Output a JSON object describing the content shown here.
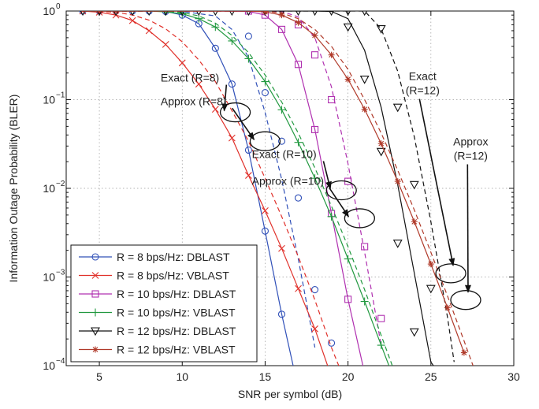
{
  "chart_data": {
    "type": "line",
    "xlabel": "SNR per symbol (dB)",
    "ylabel": "Information Outage Probability  (BLER)",
    "xlim": [
      3,
      30
    ],
    "ylim": [
      0.0001,
      1
    ],
    "y_scale": "log",
    "grid": "dotted",
    "legend_position": "bottom-left",
    "x_ticks": [
      5,
      10,
      15,
      20,
      25,
      30
    ],
    "y_ticks": [
      {
        "value": 1,
        "mantissa": "10",
        "exp": "0"
      },
      {
        "value": 0.1,
        "mantissa": "10",
        "exp": "−1"
      },
      {
        "value": 0.01,
        "mantissa": "10",
        "exp": "−2"
      },
      {
        "value": 0.001,
        "mantissa": "10",
        "exp": "−3"
      },
      {
        "value": 0.0001,
        "mantissa": "10",
        "exp": "−4"
      }
    ],
    "series": [
      {
        "name": "R = 8 bps/Hz: DBLAST",
        "color": "#3050b8",
        "marker": "circle",
        "solid": [
          [
            4,
            1
          ],
          [
            6,
            1
          ],
          [
            7,
            1
          ],
          [
            8,
            1
          ],
          [
            9,
            0.99
          ],
          [
            10,
            0.9
          ],
          [
            11,
            0.72
          ],
          [
            12,
            0.38
          ],
          [
            13,
            0.15
          ],
          [
            14,
            0.027
          ],
          [
            15,
            0.0033
          ],
          [
            16,
            0.00038
          ],
          [
            17,
            5.5e-05
          ]
        ],
        "dashed": [
          [
            4,
            1
          ],
          [
            8,
            1
          ],
          [
            10,
            0.99
          ],
          [
            12,
            0.88
          ],
          [
            13,
            0.62
          ],
          [
            14,
            0.3
          ],
          [
            15,
            0.072
          ],
          [
            16,
            0.0126
          ],
          [
            17,
            0.0016
          ],
          [
            18,
            0.00016
          ]
        ],
        "solid_markers": [
          [
            4,
            1
          ],
          [
            5,
            1
          ],
          [
            6,
            1
          ],
          [
            7,
            1
          ],
          [
            8,
            1
          ],
          [
            9,
            0.99
          ],
          [
            10,
            0.9
          ],
          [
            11,
            0.72
          ],
          [
            12,
            0.38
          ],
          [
            13,
            0.15
          ],
          [
            14,
            0.027
          ],
          [
            15,
            0.0033
          ],
          [
            16,
            0.00038
          ],
          [
            17,
            5.5e-05
          ]
        ],
        "dashed_markers": [
          [
            14,
            0.52
          ],
          [
            15,
            0.12
          ],
          [
            16,
            0.034
          ],
          [
            17,
            0.0078
          ],
          [
            18,
            0.00072
          ],
          [
            19,
            0.00018
          ]
        ]
      },
      {
        "name": "R = 8 bps/Hz: VBLAST",
        "color": "#e0302a",
        "marker": "x",
        "solid": [
          [
            4,
            1
          ],
          [
            5,
            0.97
          ],
          [
            6,
            0.9
          ],
          [
            7,
            0.78
          ],
          [
            8,
            0.6
          ],
          [
            9,
            0.42
          ],
          [
            10,
            0.26
          ],
          [
            11,
            0.15
          ],
          [
            12,
            0.078
          ],
          [
            13,
            0.037
          ],
          [
            14,
            0.014
          ],
          [
            15,
            0.0056
          ],
          [
            16,
            0.0021
          ],
          [
            17,
            0.00074
          ],
          [
            18,
            0.00026
          ],
          [
            19,
            7.5e-05
          ]
        ],
        "dashed": [
          [
            4,
            1
          ],
          [
            6,
            0.97
          ],
          [
            7,
            0.9
          ],
          [
            8,
            0.79
          ],
          [
            9,
            0.63
          ],
          [
            10,
            0.45
          ],
          [
            11,
            0.28
          ],
          [
            12,
            0.16
          ],
          [
            13,
            0.075
          ],
          [
            14,
            0.034
          ],
          [
            15,
            0.013
          ],
          [
            16,
            0.0048
          ],
          [
            17,
            0.0017
          ],
          [
            18,
            0.00055
          ],
          [
            19,
            0.00016
          ],
          [
            20,
            5.5e-05
          ]
        ],
        "solid_markers": [
          [
            4,
            1
          ],
          [
            5,
            0.97
          ],
          [
            6,
            0.9
          ],
          [
            7,
            0.78
          ],
          [
            8,
            0.6
          ],
          [
            9,
            0.42
          ],
          [
            10,
            0.26
          ],
          [
            11,
            0.15
          ],
          [
            12,
            0.078
          ],
          [
            13,
            0.037
          ],
          [
            14,
            0.014
          ],
          [
            15,
            0.0056
          ],
          [
            16,
            0.0021
          ],
          [
            17,
            0.00074
          ],
          [
            18,
            0.00026
          ],
          [
            19,
            7.5e-05
          ]
        ],
        "dashed_markers": []
      },
      {
        "name": "R = 10 bps/Hz: DBLAST",
        "color": "#b030b0",
        "marker": "square",
        "solid": [
          [
            4,
            1
          ],
          [
            10,
            1
          ],
          [
            12,
            1
          ],
          [
            14,
            0.99
          ],
          [
            15,
            0.9
          ],
          [
            16,
            0.62
          ],
          [
            17,
            0.25
          ],
          [
            18,
            0.046
          ],
          [
            19,
            0.0052
          ],
          [
            20,
            0.00056
          ],
          [
            21,
            8.2e-05
          ]
        ],
        "dashed": [
          [
            4,
            1
          ],
          [
            14,
            1
          ],
          [
            16,
            0.99
          ],
          [
            17,
            0.86
          ],
          [
            18,
            0.5
          ],
          [
            19,
            0.14
          ],
          [
            20,
            0.019
          ],
          [
            21,
            0.0019
          ],
          [
            22,
            0.00017
          ]
        ],
        "solid_markers": [
          [
            14,
            1
          ],
          [
            15,
            0.9
          ],
          [
            16,
            0.62
          ],
          [
            17,
            0.25
          ],
          [
            18,
            0.046
          ],
          [
            19,
            0.0052
          ],
          [
            20,
            0.00056
          ],
          [
            21,
            8.2e-05
          ]
        ],
        "dashed_markers": [
          [
            17,
            0.7
          ],
          [
            18,
            0.32
          ],
          [
            19,
            0.1
          ],
          [
            20,
            0.012
          ],
          [
            21,
            0.0022
          ],
          [
            22,
            0.00034
          ]
        ]
      },
      {
        "name": "R = 10 bps/Hz: VBLAST",
        "color": "#229940",
        "marker": "plus",
        "solid": [
          [
            4,
            1
          ],
          [
            8,
            1
          ],
          [
            9,
            0.98
          ],
          [
            10,
            0.93
          ],
          [
            11,
            0.82
          ],
          [
            12,
            0.66
          ],
          [
            13,
            0.46
          ],
          [
            14,
            0.29
          ],
          [
            15,
            0.16
          ],
          [
            16,
            0.077
          ],
          [
            17,
            0.033
          ],
          [
            18,
            0.013
          ],
          [
            19,
            0.0048
          ],
          [
            20,
            0.0016
          ],
          [
            21,
            0.00053
          ],
          [
            22,
            0.00017
          ],
          [
            23,
            5.5e-05
          ]
        ],
        "dashed": [
          [
            4,
            1
          ],
          [
            9,
            1
          ],
          [
            10,
            0.96
          ],
          [
            11,
            0.88
          ],
          [
            12,
            0.73
          ],
          [
            13,
            0.53
          ],
          [
            14,
            0.34
          ],
          [
            15,
            0.19
          ],
          [
            16,
            0.094
          ],
          [
            17,
            0.042
          ],
          [
            18,
            0.017
          ],
          [
            19,
            0.0063
          ],
          [
            20,
            0.0022
          ],
          [
            21,
            0.00072
          ],
          [
            22,
            0.00022
          ],
          [
            23,
            6.8e-05
          ]
        ],
        "solid_markers": [
          [
            9,
            0.98
          ],
          [
            10,
            0.93
          ],
          [
            11,
            0.82
          ],
          [
            12,
            0.66
          ],
          [
            13,
            0.46
          ],
          [
            14,
            0.29
          ],
          [
            15,
            0.16
          ],
          [
            16,
            0.077
          ],
          [
            17,
            0.033
          ],
          [
            18,
            0.013
          ],
          [
            19,
            0.0048
          ],
          [
            20,
            0.0016
          ],
          [
            21,
            0.00053
          ],
          [
            22,
            0.00017
          ],
          [
            23,
            5.5e-05
          ]
        ],
        "dashed_markers": []
      },
      {
        "name": "R = 12 bps/Hz: DBLAST",
        "color": "#111111",
        "marker": "triangle-down",
        "solid": [
          [
            4,
            1
          ],
          [
            18,
            1
          ],
          [
            19,
            0.99
          ],
          [
            20,
            0.82
          ],
          [
            21,
            0.36
          ],
          [
            22,
            0.082
          ],
          [
            23,
            0.011
          ],
          [
            24,
            0.0011
          ],
          [
            25,
            0.00011
          ],
          [
            26,
            5.8e-05
          ]
        ],
        "dashed": [
          [
            4,
            1
          ],
          [
            20,
            1
          ],
          [
            21,
            1
          ],
          [
            22,
            0.63
          ],
          [
            23,
            0.21
          ],
          [
            24,
            0.038
          ],
          [
            25,
            0.0042
          ],
          [
            26,
            0.00035
          ],
          [
            26.4,
            0.00011
          ]
        ],
        "solid_markers": [
          [
            4,
            1
          ],
          [
            5,
            1
          ],
          [
            6,
            1
          ],
          [
            7,
            1
          ],
          [
            8,
            1
          ],
          [
            9,
            1
          ],
          [
            10,
            1
          ],
          [
            11,
            1
          ],
          [
            12,
            1
          ],
          [
            13,
            1
          ],
          [
            14,
            1
          ],
          [
            15,
            1
          ],
          [
            16,
            1
          ],
          [
            17,
            1
          ],
          [
            18,
            1
          ],
          [
            19,
            1
          ],
          [
            20,
            0.66
          ],
          [
            21,
            0.17
          ],
          [
            22,
            0.026
          ],
          [
            23,
            0.0024
          ],
          [
            24,
            0.00024
          ]
        ],
        "dashed_markers": [
          [
            20,
            1
          ],
          [
            21,
            1
          ],
          [
            22,
            0.63
          ],
          [
            23,
            0.082
          ],
          [
            24,
            0.011
          ],
          [
            25,
            0.00074
          ]
        ]
      },
      {
        "name": "R = 12 bps/Hz: VBLAST",
        "color": "#b03a2a",
        "marker": "asterisk",
        "solid": [
          [
            4,
            1
          ],
          [
            14,
            1
          ],
          [
            15,
            0.98
          ],
          [
            16,
            0.9
          ],
          [
            17,
            0.74
          ],
          [
            18,
            0.53
          ],
          [
            19,
            0.32
          ],
          [
            20,
            0.17
          ],
          [
            21,
            0.078
          ],
          [
            22,
            0.032
          ],
          [
            23,
            0.012
          ],
          [
            24,
            0.0042
          ],
          [
            25,
            0.0014
          ],
          [
            26,
            0.00045
          ],
          [
            27,
            0.00014
          ]
        ],
        "dashed": [
          [
            4,
            1
          ],
          [
            15,
            1
          ],
          [
            16,
            0.95
          ],
          [
            17,
            0.82
          ],
          [
            18,
            0.62
          ],
          [
            19,
            0.4
          ],
          [
            20,
            0.22
          ],
          [
            21,
            0.1
          ],
          [
            22,
            0.042
          ],
          [
            23,
            0.016
          ],
          [
            24,
            0.0057
          ],
          [
            25,
            0.0019
          ],
          [
            26,
            0.00061
          ],
          [
            27,
            0.00019
          ],
          [
            28,
            5.8e-05
          ]
        ],
        "solid_markers": [
          [
            15,
            0.98
          ],
          [
            16,
            0.9
          ],
          [
            17,
            0.74
          ],
          [
            18,
            0.53
          ],
          [
            19,
            0.32
          ],
          [
            20,
            0.17
          ],
          [
            21,
            0.078
          ],
          [
            22,
            0.032
          ],
          [
            23,
            0.012
          ],
          [
            24,
            0.0042
          ],
          [
            25,
            0.0014
          ],
          [
            26,
            0.00045
          ],
          [
            27,
            0.00014
          ]
        ],
        "dashed_markers": []
      }
    ],
    "annotations": [
      {
        "text": "Exact (R=8)",
        "label_x": 8.7,
        "label_y": 0.16,
        "target_x": 13.2,
        "target_y": 0.072,
        "ellipse": true
      },
      {
        "text": "Approx (R=8)",
        "label_x": 8.7,
        "label_y": 0.087,
        "target_x": 15,
        "target_y": 0.034,
        "ellipse": true
      },
      {
        "text": "Exact (R=10)",
        "label_x": 14.2,
        "label_y": 0.022,
        "target_x": 19.6,
        "target_y": 0.0095,
        "ellipse": true
      },
      {
        "text": "Approx (R=10)",
        "label_x": 14.2,
        "label_y": 0.011,
        "target_x": 20.7,
        "target_y": 0.0046,
        "ellipse": true
      },
      {
        "text": "Exact",
        "label2": "(R=12)",
        "label_x": 24.5,
        "label_y": 0.12,
        "target_x": 26.2,
        "target_y": 0.0011,
        "ellipse": true
      },
      {
        "text": "Approx",
        "label2": "(R=12)",
        "label_x": 27.4,
        "label_y": 0.022,
        "target_x": 27.1,
        "target_y": 0.00055,
        "ellipse": true
      }
    ]
  }
}
